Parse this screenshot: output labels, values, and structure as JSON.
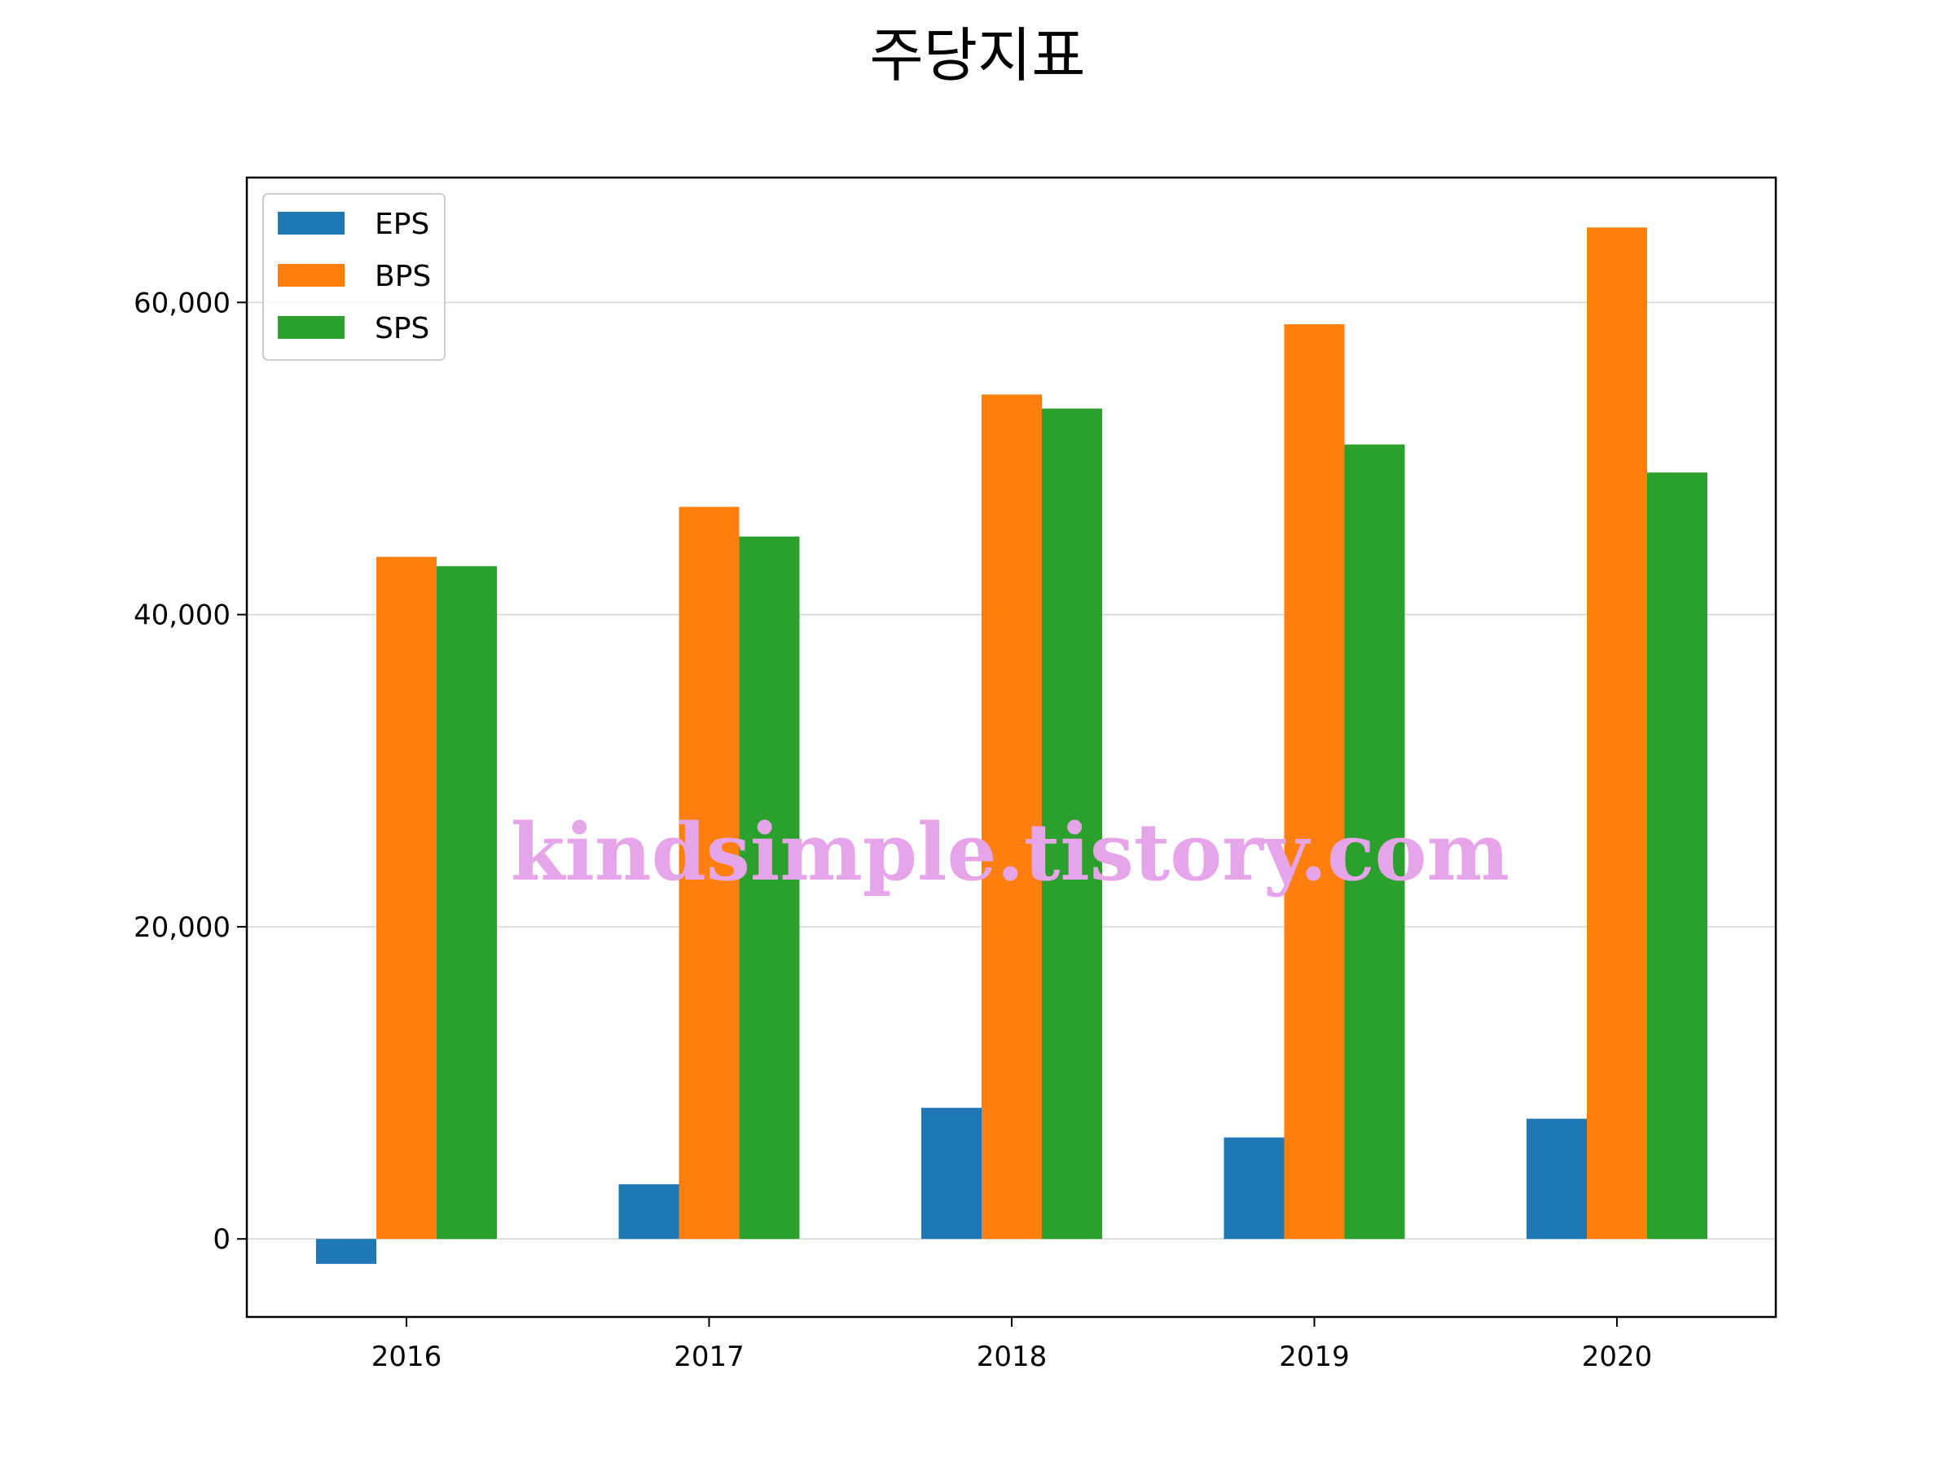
{
  "chart_data": {
    "type": "bar",
    "title": "주당지표",
    "xlabel": "",
    "ylabel": "",
    "categories": [
      "2016",
      "2017",
      "2018",
      "2019",
      "2020"
    ],
    "series": [
      {
        "name": "EPS",
        "color": "#1f77b4",
        "values": [
          -1600,
          3500,
          8400,
          6500,
          7700
        ]
      },
      {
        "name": "BPS",
        "color": "#ff7f0e",
        "values": [
          43700,
          46900,
          54100,
          58600,
          64800
        ]
      },
      {
        "name": "SPS",
        "color": "#2ca02c",
        "values": [
          43100,
          45000,
          53200,
          50900,
          49100
        ]
      }
    ],
    "ylim": [
      -5000,
      68000
    ],
    "yticks": [
      0,
      20000,
      40000,
      60000
    ],
    "ytick_labels": [
      "0",
      "20,000",
      "40,000",
      "60,000"
    ],
    "grid": "y",
    "legend_position": "top-left"
  },
  "watermark": "kindsimple.tistory.com"
}
